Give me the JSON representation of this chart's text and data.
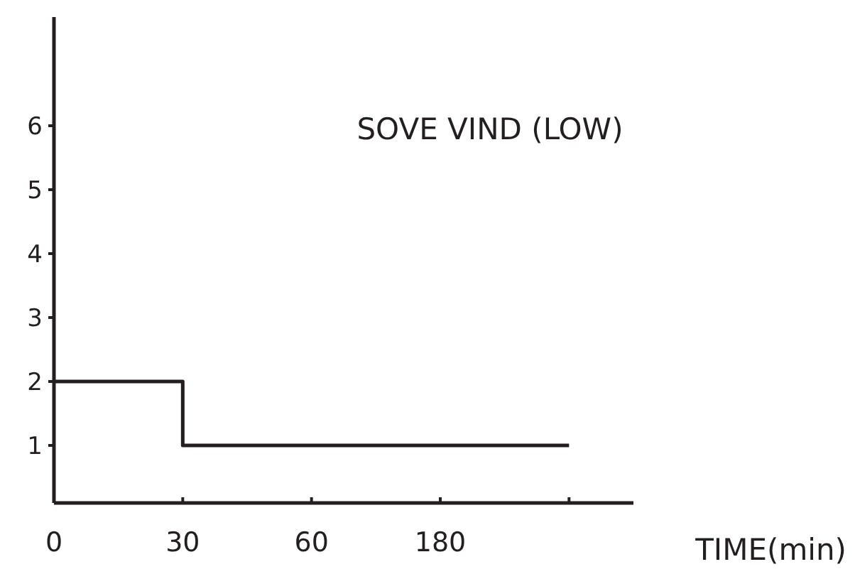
{
  "chart_data": {
    "type": "step",
    "title": "SOVE VIND (LOW)",
    "xlabel": "TIME(min)",
    "categories": [
      "0",
      "30",
      "60",
      "180",
      null
    ],
    "values": [
      2,
      1,
      1,
      1,
      1
    ],
    "color": "#231f20",
    "ylim": [
      0.1,
      7.7
    ],
    "yticks": [
      1,
      2,
      3,
      4,
      5,
      6
    ],
    "marker": "none",
    "line_style": "solid"
  }
}
